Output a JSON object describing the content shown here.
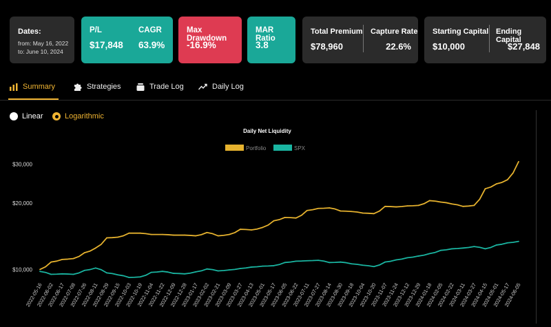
{
  "stats": {
    "dates": {
      "label": "Dates:",
      "from": "from: May 16, 2022",
      "to": "to: June 10, 2024"
    },
    "pl": {
      "label": "P/L",
      "value": "$17,848"
    },
    "cagr": {
      "label": "CAGR",
      "value": "63.9%"
    },
    "max_drawdown": {
      "label": "Max Drawdown",
      "value": "-16.9%"
    },
    "mar_ratio": {
      "label": "MAR Ratio",
      "value": "3.8"
    },
    "total_premium": {
      "label": "Total Premium",
      "value": "$78,960"
    },
    "capture_rate": {
      "label": "Capture Rate",
      "value": "22.6%"
    },
    "starting_capital": {
      "label": "Starting Capital",
      "value": "$10,000"
    },
    "ending_capital": {
      "label": "Ending Capital",
      "value": "$27,848"
    }
  },
  "colors": {
    "teal": "#1aa898",
    "red": "#de3b52",
    "gold": "#f0b432",
    "panel": "#2b2b2b"
  },
  "tabs": [
    {
      "label": "Summary",
      "icon": "bar-chart-icon",
      "active": true
    },
    {
      "label": "Strategies",
      "icon": "puzzle-icon",
      "active": false
    },
    {
      "label": "Trade Log",
      "icon": "stack-icon",
      "active": false
    },
    {
      "label": "Daily Log",
      "icon": "trend-icon",
      "active": false
    }
  ],
  "scale": {
    "linear_label": "Linear",
    "log_label": "Logarithmic",
    "selected": "Logarithmic"
  },
  "chart_data": {
    "type": "line",
    "title": "Daily Net Liquidity",
    "yscale": "log",
    "ylim": [
      9200,
      36000
    ],
    "yticks": [
      10000,
      20000,
      30000
    ],
    "ytick_labels": [
      "$10,000",
      "$20,000",
      "$30,000"
    ],
    "legend": [
      "Portfolio",
      "SPX"
    ],
    "x_labels": [
      "2022-05-16",
      "2022-06-02",
      "2022-06-17",
      "2022-07-08",
      "2022-07-26",
      "2022-08-11",
      "2022-08-29",
      "2022-09-15",
      "2022-10-03",
      "2022-10-19",
      "2022-11-04",
      "2022-11-22",
      "2022-12-09",
      "2022-12-28",
      "2023-01-17",
      "2023-02-02",
      "2023-02-21",
      "2023-03-09",
      "2023-03-27",
      "2023-04-13",
      "2023-05-01",
      "2023-05-17",
      "2023-06-05",
      "2023-06-22",
      "2023-07-11",
      "2023-07-27",
      "2023-08-14",
      "2023-08-30",
      "2023-09-18",
      "2023-10-04",
      "2023-10-20",
      "2023-11-07",
      "2023-11-24",
      "2023-12-12",
      "2023-12-29",
      "2024-01-18",
      "2024-02-05",
      "2024-02-22",
      "2024-03-11",
      "2024-03-27",
      "2024-04-15",
      "2024-05-01",
      "2024-05-17",
      "2024-06-05"
    ],
    "series": [
      {
        "name": "Portfolio",
        "color": "#e6b22e",
        "values": [
          10000,
          10800,
          11100,
          11200,
          11900,
          12500,
          13900,
          14000,
          14600,
          14600,
          14400,
          14400,
          14300,
          14300,
          14200,
          14700,
          14200,
          14400,
          15200,
          15100,
          15500,
          16600,
          17200,
          17100,
          18500,
          18900,
          19000,
          18400,
          18300,
          18000,
          17900,
          19300,
          19200,
          19400,
          19500,
          20500,
          20200,
          19800,
          19300,
          19500,
          23200,
          24400,
          25500,
          30800
        ]
      },
      {
        "name": "SPX",
        "color": "#1ab5a1",
        "values": [
          9800,
          9500,
          9550,
          9500,
          9900,
          10150,
          9650,
          9450,
          9200,
          9250,
          9700,
          9800,
          9600,
          9550,
          9750,
          10050,
          9850,
          9950,
          10100,
          10250,
          10350,
          10400,
          10750,
          10900,
          10950,
          11000,
          10750,
          10800,
          10600,
          10450,
          10300,
          10800,
          11050,
          11300,
          11500,
          11800,
          12200,
          12400,
          12500,
          12700,
          12400,
          12900,
          13200,
          13400
        ]
      }
    ]
  }
}
